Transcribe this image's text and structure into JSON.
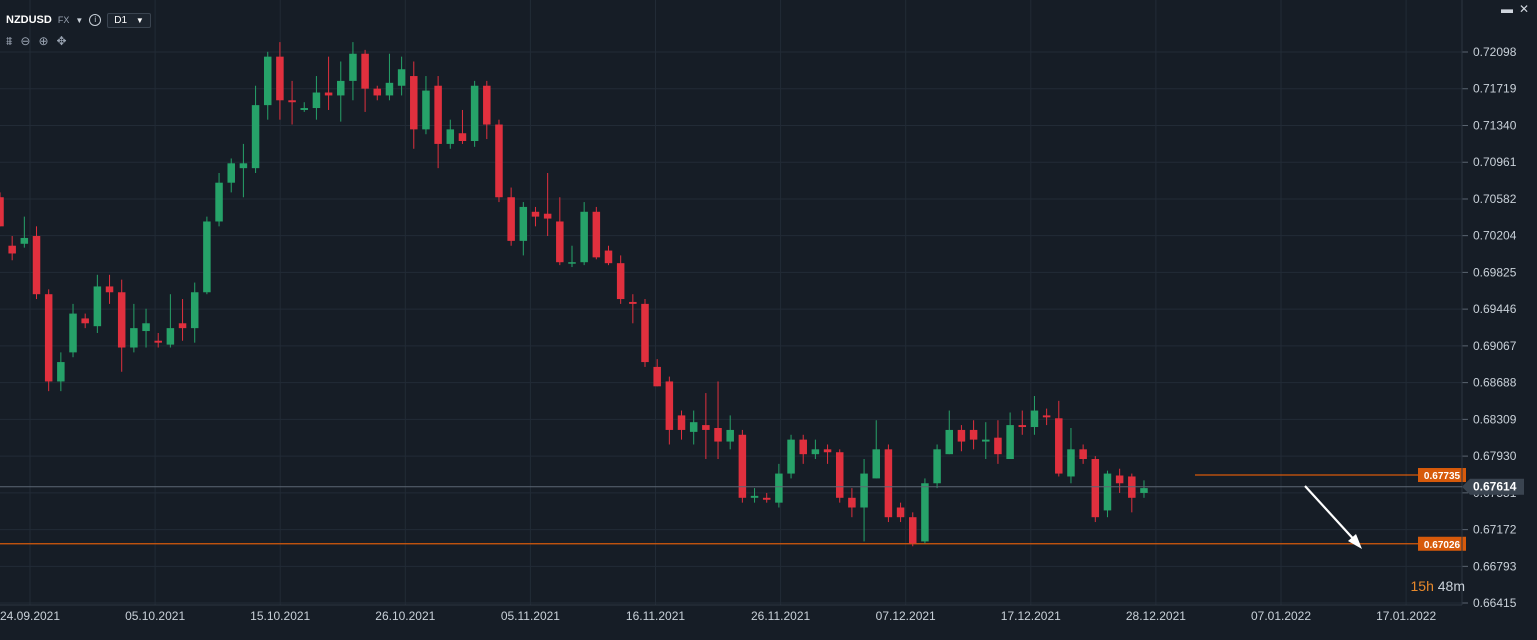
{
  "header": {
    "symbol": "NZDUSD",
    "market": "FX",
    "timeframe": "D1"
  },
  "countdown": {
    "hours": "15h",
    "minutes": "48m"
  },
  "colors": {
    "bull": "#26a269",
    "bear": "#e0303e",
    "bg": "#161d26",
    "level": "#d75a0b",
    "grid": "#222b36"
  },
  "icons": [
    "info-icon",
    "dropdown-icon",
    "crosshair-icon",
    "zoom-out-icon",
    "zoom-in-icon",
    "move-icon",
    "minimize-icon",
    "close-icon"
  ],
  "chart_data": {
    "type": "candlestick",
    "y_ticks": [
      "0.72098",
      "0.71719",
      "0.71340",
      "0.70961",
      "0.70582",
      "0.70204",
      "0.69825",
      "0.69446",
      "0.69067",
      "0.68688",
      "0.68309",
      "0.67930",
      "0.67551",
      "0.67172",
      "0.66793",
      "0.66415"
    ],
    "x_ticks": [
      "24.09.2021",
      "05.10.2021",
      "15.10.2021",
      "26.10.2021",
      "05.11.2021",
      "16.11.2021",
      "26.11.2021",
      "07.12.2021",
      "17.12.2021",
      "28.12.2021",
      "07.01.2022",
      "17.01.2022"
    ],
    "ylim": [
      0.66415,
      0.72098
    ],
    "current_price": "0.67614",
    "levels": [
      {
        "price": "0.67735",
        "value": 0.67735
      },
      {
        "price": "0.67026",
        "value": 0.67026
      }
    ],
    "candles": [
      [
        0.706,
        0.703,
        0.7065,
        0.703
      ],
      [
        0.701,
        0.7002,
        0.702,
        0.6995
      ],
      [
        0.7012,
        0.7018,
        0.704,
        0.7008
      ],
      [
        0.702,
        0.696,
        0.703,
        0.6955
      ],
      [
        0.696,
        0.687,
        0.6965,
        0.686
      ],
      [
        0.687,
        0.689,
        0.69,
        0.686
      ],
      [
        0.69,
        0.694,
        0.695,
        0.6895
      ],
      [
        0.6935,
        0.693,
        0.694,
        0.6925
      ],
      [
        0.6927,
        0.6968,
        0.698,
        0.692
      ],
      [
        0.6968,
        0.6962,
        0.698,
        0.695
      ],
      [
        0.6962,
        0.6905,
        0.6975,
        0.688
      ],
      [
        0.6905,
        0.6925,
        0.695,
        0.69
      ],
      [
        0.6922,
        0.693,
        0.6945,
        0.6905
      ],
      [
        0.6912,
        0.691,
        0.692,
        0.6905
      ],
      [
        0.6908,
        0.6925,
        0.696,
        0.6905
      ],
      [
        0.693,
        0.6925,
        0.6955,
        0.6912
      ],
      [
        0.6925,
        0.6962,
        0.6972,
        0.691
      ],
      [
        0.6962,
        0.7035,
        0.704,
        0.696
      ],
      [
        0.7035,
        0.7075,
        0.7085,
        0.703
      ],
      [
        0.7075,
        0.7095,
        0.71,
        0.7065
      ],
      [
        0.709,
        0.7095,
        0.7115,
        0.706
      ],
      [
        0.709,
        0.7155,
        0.7175,
        0.7085
      ],
      [
        0.7155,
        0.7205,
        0.721,
        0.714
      ],
      [
        0.7205,
        0.716,
        0.722,
        0.714
      ],
      [
        0.716,
        0.7158,
        0.718,
        0.7135
      ],
      [
        0.715,
        0.7152,
        0.7158,
        0.7148
      ],
      [
        0.7152,
        0.7168,
        0.7185,
        0.714
      ],
      [
        0.7168,
        0.7165,
        0.7205,
        0.715
      ],
      [
        0.7165,
        0.718,
        0.72,
        0.7138
      ],
      [
        0.718,
        0.7208,
        0.722,
        0.716
      ],
      [
        0.7208,
        0.7172,
        0.7212,
        0.7148
      ],
      [
        0.7172,
        0.7165,
        0.7175,
        0.716
      ],
      [
        0.7165,
        0.7178,
        0.7208,
        0.716
      ],
      [
        0.7175,
        0.7192,
        0.7205,
        0.7165
      ],
      [
        0.7185,
        0.713,
        0.72,
        0.711
      ],
      [
        0.713,
        0.717,
        0.7185,
        0.7125
      ],
      [
        0.7175,
        0.7115,
        0.7185,
        0.709
      ],
      [
        0.7115,
        0.713,
        0.714,
        0.711
      ],
      [
        0.7126,
        0.7118,
        0.715,
        0.7115
      ],
      [
        0.7118,
        0.7175,
        0.718,
        0.7112
      ],
      [
        0.7175,
        0.7135,
        0.718,
        0.712
      ],
      [
        0.7135,
        0.706,
        0.714,
        0.7055
      ],
      [
        0.706,
        0.7015,
        0.707,
        0.701
      ],
      [
        0.7015,
        0.705,
        0.7055,
        0.7
      ],
      [
        0.7045,
        0.704,
        0.705,
        0.703
      ],
      [
        0.7043,
        0.7038,
        0.7085,
        0.702
      ],
      [
        0.7035,
        0.6993,
        0.706,
        0.699
      ],
      [
        0.6993,
        0.6993,
        0.701,
        0.6988
      ],
      [
        0.6993,
        0.7045,
        0.7055,
        0.699
      ],
      [
        0.7045,
        0.6998,
        0.705,
        0.6996
      ],
      [
        0.7005,
        0.6992,
        0.701,
        0.699
      ],
      [
        0.6992,
        0.6955,
        0.7,
        0.695
      ],
      [
        0.6952,
        0.695,
        0.696,
        0.693
      ],
      [
        0.695,
        0.689,
        0.6955,
        0.6885
      ],
      [
        0.6885,
        0.6865,
        0.6893,
        0.6865
      ],
      [
        0.687,
        0.682,
        0.6875,
        0.6805
      ],
      [
        0.6835,
        0.682,
        0.684,
        0.681
      ],
      [
        0.6818,
        0.6828,
        0.684,
        0.6805
      ],
      [
        0.6825,
        0.682,
        0.6858,
        0.679
      ],
      [
        0.6822,
        0.6808,
        0.687,
        0.679
      ],
      [
        0.6808,
        0.682,
        0.6835,
        0.68
      ],
      [
        0.6815,
        0.675,
        0.682,
        0.6745
      ],
      [
        0.675,
        0.6752,
        0.676,
        0.6745
      ],
      [
        0.675,
        0.6748,
        0.6755,
        0.6745
      ],
      [
        0.6745,
        0.6775,
        0.6785,
        0.674
      ],
      [
        0.6775,
        0.681,
        0.6815,
        0.677
      ],
      [
        0.681,
        0.6795,
        0.6815,
        0.6785
      ],
      [
        0.6795,
        0.68,
        0.681,
        0.679
      ],
      [
        0.68,
        0.6797,
        0.6805,
        0.6785
      ],
      [
        0.6797,
        0.675,
        0.68,
        0.6745
      ],
      [
        0.675,
        0.674,
        0.676,
        0.673
      ],
      [
        0.674,
        0.6775,
        0.679,
        0.6705
      ],
      [
        0.677,
        0.68,
        0.683,
        0.677
      ],
      [
        0.68,
        0.673,
        0.6805,
        0.6725
      ],
      [
        0.674,
        0.673,
        0.6745,
        0.6725
      ],
      [
        0.673,
        0.6703,
        0.6735,
        0.67
      ],
      [
        0.6705,
        0.6765,
        0.677,
        0.6703
      ],
      [
        0.6765,
        0.68,
        0.6805,
        0.676
      ],
      [
        0.6795,
        0.682,
        0.684,
        0.6795
      ],
      [
        0.682,
        0.6808,
        0.6825,
        0.6798
      ],
      [
        0.682,
        0.681,
        0.683,
        0.68
      ],
      [
        0.6808,
        0.681,
        0.6828,
        0.679
      ],
      [
        0.6812,
        0.6795,
        0.683,
        0.6785
      ],
      [
        0.679,
        0.6825,
        0.6838,
        0.679
      ],
      [
        0.6825,
        0.6823,
        0.684,
        0.6815
      ],
      [
        0.6823,
        0.684,
        0.6855,
        0.6815
      ],
      [
        0.6835,
        0.6833,
        0.6842,
        0.6825
      ],
      [
        0.6832,
        0.6775,
        0.685,
        0.6772
      ],
      [
        0.6772,
        0.68,
        0.6822,
        0.6765
      ],
      [
        0.68,
        0.679,
        0.6805,
        0.6785
      ],
      [
        0.679,
        0.673,
        0.6793,
        0.6725
      ],
      [
        0.6737,
        0.6775,
        0.6778,
        0.673
      ],
      [
        0.6773,
        0.6765,
        0.678,
        0.6755
      ],
      [
        0.6772,
        0.675,
        0.6775,
        0.6735
      ],
      [
        0.6755,
        0.676,
        0.6768,
        0.675
      ]
    ]
  }
}
